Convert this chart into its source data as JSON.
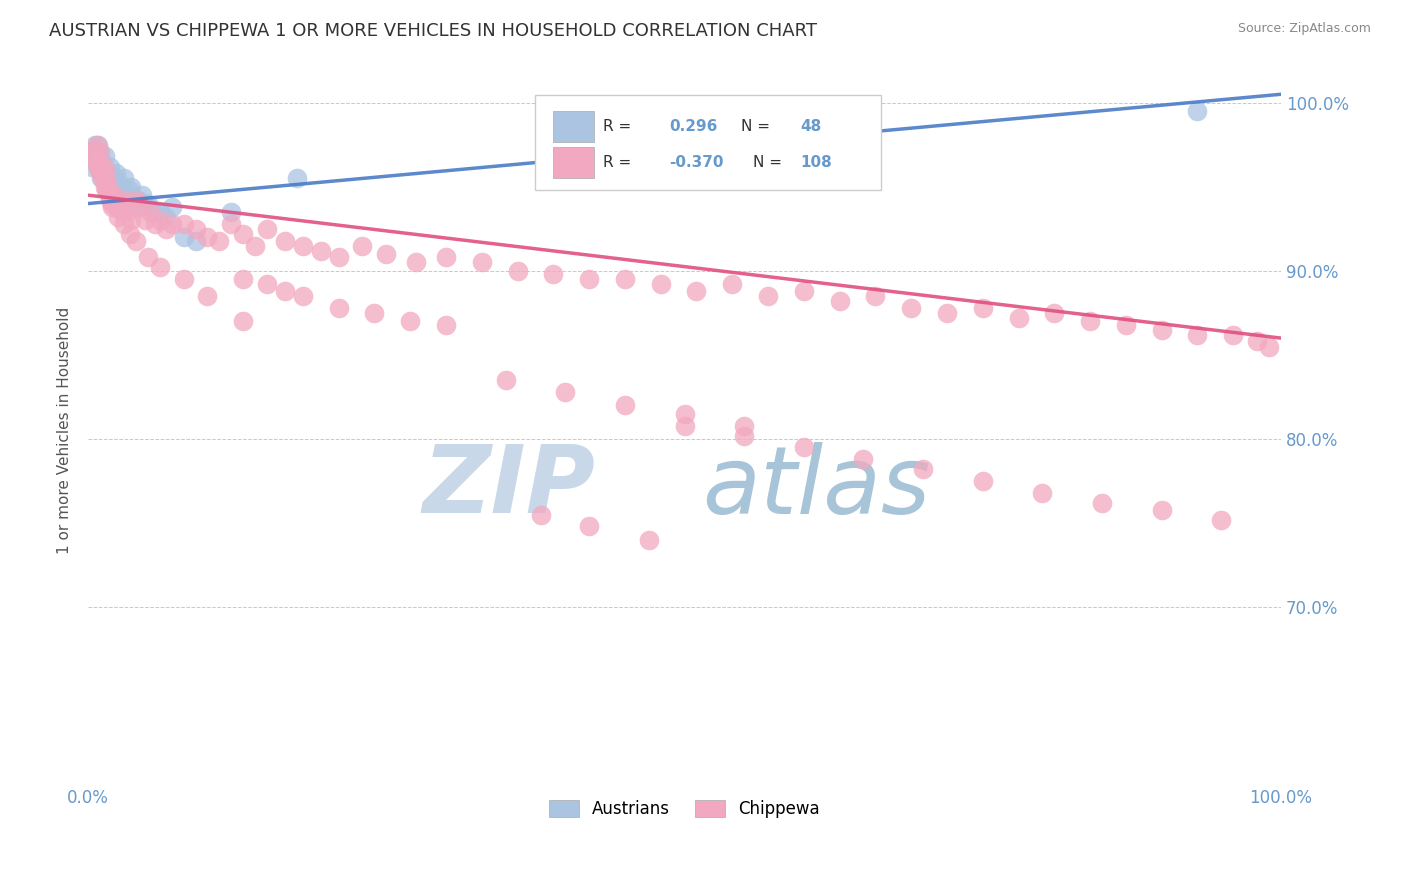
{
  "title": "AUSTRIAN VS CHIPPEWA 1 OR MORE VEHICLES IN HOUSEHOLD CORRELATION CHART",
  "source": "Source: ZipAtlas.com",
  "ylabel": "1 or more Vehicles in Household",
  "xlim": [
    0.0,
    1.0
  ],
  "ylim": [
    0.595,
    1.015
  ],
  "ytick_labels": [
    "70.0%",
    "80.0%",
    "90.0%",
    "100.0%"
  ],
  "ytick_values": [
    0.7,
    0.8,
    0.9,
    1.0
  ],
  "xtick_labels": [
    "0.0%",
    "100.0%"
  ],
  "xtick_values": [
    0.0,
    1.0
  ],
  "legend_blue_r": "0.296",
  "legend_blue_n": "48",
  "legend_pink_r": "-0.370",
  "legend_pink_n": "108",
  "blue_color": "#aac4e2",
  "pink_color": "#f2a8c0",
  "blue_line_color": "#4a7cc7",
  "pink_line_color": "#e05080",
  "background_color": "#ffffff",
  "grid_color": "#bbbbbb",
  "title_color": "#333333",
  "watermark_zip_color": "#c8d8e8",
  "watermark_atlas_color": "#a8c4d8",
  "right_axis_label_color": "#6699cc",
  "austrians_x": [
    0.003,
    0.004,
    0.005,
    0.006,
    0.007,
    0.007,
    0.008,
    0.009,
    0.009,
    0.01,
    0.011,
    0.012,
    0.013,
    0.013,
    0.014,
    0.015,
    0.016,
    0.017,
    0.018,
    0.019,
    0.02,
    0.021,
    0.022,
    0.023,
    0.024,
    0.025,
    0.026,
    0.027,
    0.028,
    0.03,
    0.032,
    0.034,
    0.036,
    0.038,
    0.04,
    0.042,
    0.045,
    0.048,
    0.05,
    0.055,
    0.06,
    0.065,
    0.07,
    0.08,
    0.09,
    0.12,
    0.175,
    0.93
  ],
  "austrians_y": [
    0.962,
    0.972,
    0.968,
    0.975,
    0.97,
    0.965,
    0.975,
    0.968,
    0.972,
    0.96,
    0.955,
    0.965,
    0.96,
    0.958,
    0.968,
    0.96,
    0.955,
    0.958,
    0.962,
    0.955,
    0.95,
    0.955,
    0.955,
    0.958,
    0.948,
    0.95,
    0.952,
    0.945,
    0.948,
    0.955,
    0.945,
    0.948,
    0.95,
    0.942,
    0.938,
    0.942,
    0.945,
    0.94,
    0.94,
    0.935,
    0.935,
    0.932,
    0.938,
    0.92,
    0.918,
    0.935,
    0.955,
    0.995
  ],
  "chippewa_x": [
    0.004,
    0.005,
    0.006,
    0.007,
    0.008,
    0.009,
    0.01,
    0.011,
    0.012,
    0.013,
    0.014,
    0.015,
    0.016,
    0.017,
    0.018,
    0.02,
    0.022,
    0.025,
    0.028,
    0.03,
    0.033,
    0.036,
    0.04,
    0.044,
    0.048,
    0.052,
    0.056,
    0.06,
    0.065,
    0.07,
    0.08,
    0.09,
    0.1,
    0.11,
    0.12,
    0.13,
    0.14,
    0.15,
    0.165,
    0.18,
    0.195,
    0.21,
    0.23,
    0.25,
    0.275,
    0.3,
    0.33,
    0.36,
    0.39,
    0.42,
    0.45,
    0.48,
    0.51,
    0.54,
    0.57,
    0.6,
    0.63,
    0.66,
    0.69,
    0.72,
    0.75,
    0.78,
    0.81,
    0.84,
    0.87,
    0.9,
    0.93,
    0.96,
    0.98,
    0.99,
    0.13,
    0.15,
    0.165,
    0.18,
    0.21,
    0.24,
    0.27,
    0.3,
    0.015,
    0.018,
    0.02,
    0.025,
    0.03,
    0.035,
    0.04,
    0.05,
    0.06,
    0.08,
    0.1,
    0.13,
    0.5,
    0.55,
    0.6,
    0.65,
    0.7,
    0.75,
    0.8,
    0.85,
    0.9,
    0.95,
    0.35,
    0.4,
    0.45,
    0.5,
    0.55,
    0.38,
    0.42,
    0.47
  ],
  "chippewa_y": [
    0.968,
    0.972,
    0.965,
    0.975,
    0.962,
    0.96,
    0.97,
    0.958,
    0.955,
    0.962,
    0.95,
    0.958,
    0.952,
    0.948,
    0.945,
    0.94,
    0.945,
    0.938,
    0.935,
    0.942,
    0.935,
    0.93,
    0.942,
    0.938,
    0.93,
    0.935,
    0.928,
    0.93,
    0.925,
    0.928,
    0.928,
    0.925,
    0.92,
    0.918,
    0.928,
    0.922,
    0.915,
    0.925,
    0.918,
    0.915,
    0.912,
    0.908,
    0.915,
    0.91,
    0.905,
    0.908,
    0.905,
    0.9,
    0.898,
    0.895,
    0.895,
    0.892,
    0.888,
    0.892,
    0.885,
    0.888,
    0.882,
    0.885,
    0.878,
    0.875,
    0.878,
    0.872,
    0.875,
    0.87,
    0.868,
    0.865,
    0.862,
    0.862,
    0.858,
    0.855,
    0.895,
    0.892,
    0.888,
    0.885,
    0.878,
    0.875,
    0.87,
    0.868,
    0.948,
    0.942,
    0.938,
    0.932,
    0.928,
    0.922,
    0.918,
    0.908,
    0.902,
    0.895,
    0.885,
    0.87,
    0.808,
    0.802,
    0.795,
    0.788,
    0.782,
    0.775,
    0.768,
    0.762,
    0.758,
    0.752,
    0.835,
    0.828,
    0.82,
    0.815,
    0.808,
    0.755,
    0.748,
    0.74
  ]
}
